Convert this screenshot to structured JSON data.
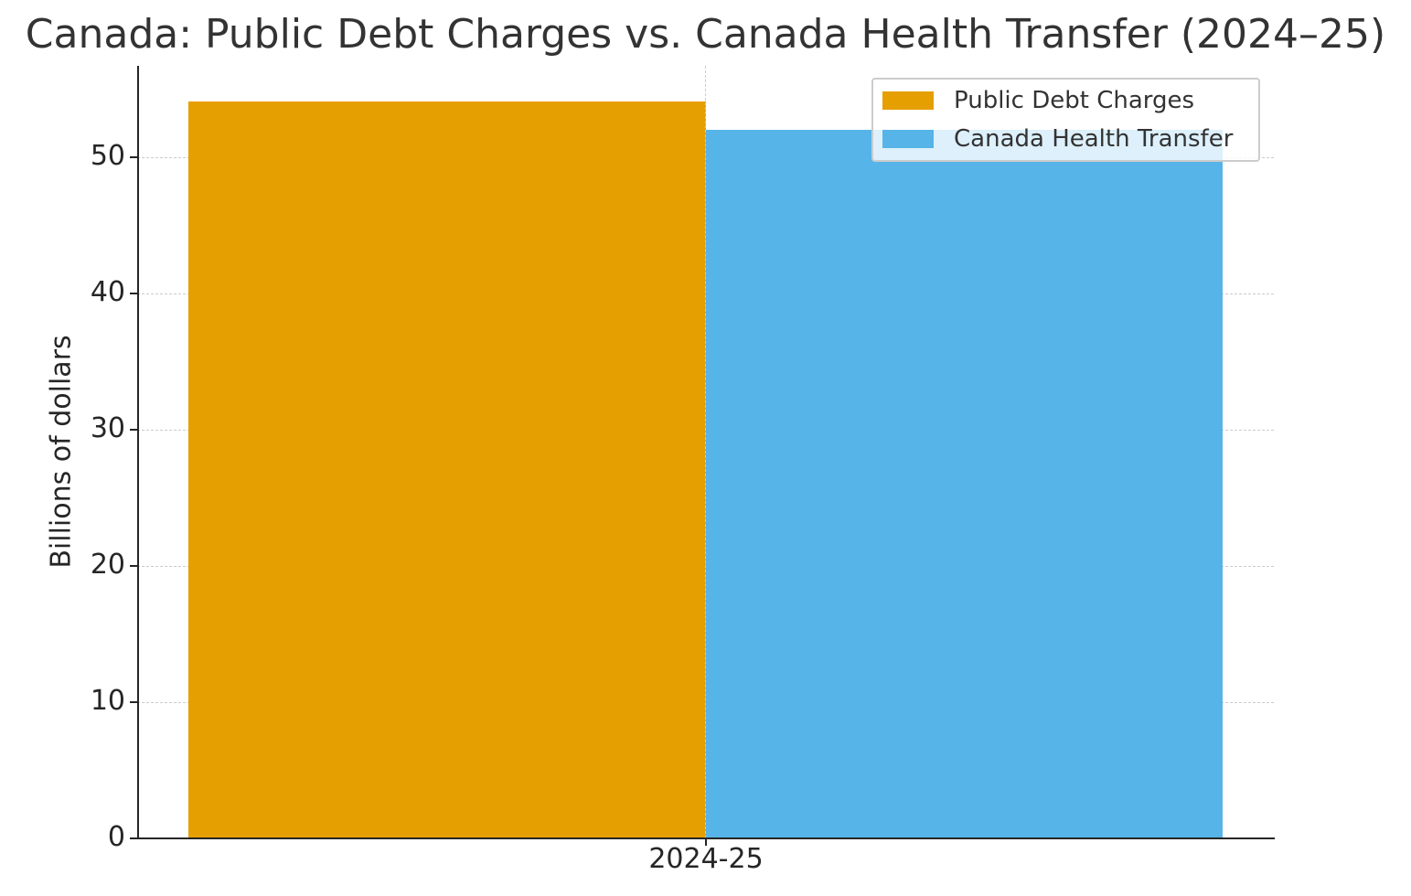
{
  "chart_data": {
    "type": "bar",
    "title": "Canada: Public Debt Charges vs. Canada Health Transfer (2024–25)",
    "xlabel": "",
    "ylabel": "Billions of dollars",
    "categories": [
      "2024-25"
    ],
    "series": [
      {
        "name": "Public Debt Charges",
        "values": [
          54.1
        ],
        "color": "#E69F00"
      },
      {
        "name": "Canada Health Transfer",
        "values": [
          52.0
        ],
        "color": "#56B4E9"
      }
    ],
    "ylim": [
      0,
      56.7
    ],
    "yticks": [
      0,
      10,
      20,
      30,
      40,
      50
    ],
    "grid": true,
    "legend_position": "upper right"
  },
  "labels": {
    "title": "Canada: Public Debt Charges vs. Canada Health Transfer (2024–25)",
    "ylabel": "Billions of dollars",
    "xtick": "2024-25",
    "yticks": [
      "0",
      "10",
      "20",
      "30",
      "40",
      "50"
    ],
    "legend": [
      "Public Debt Charges",
      "Canada Health Transfer"
    ]
  }
}
